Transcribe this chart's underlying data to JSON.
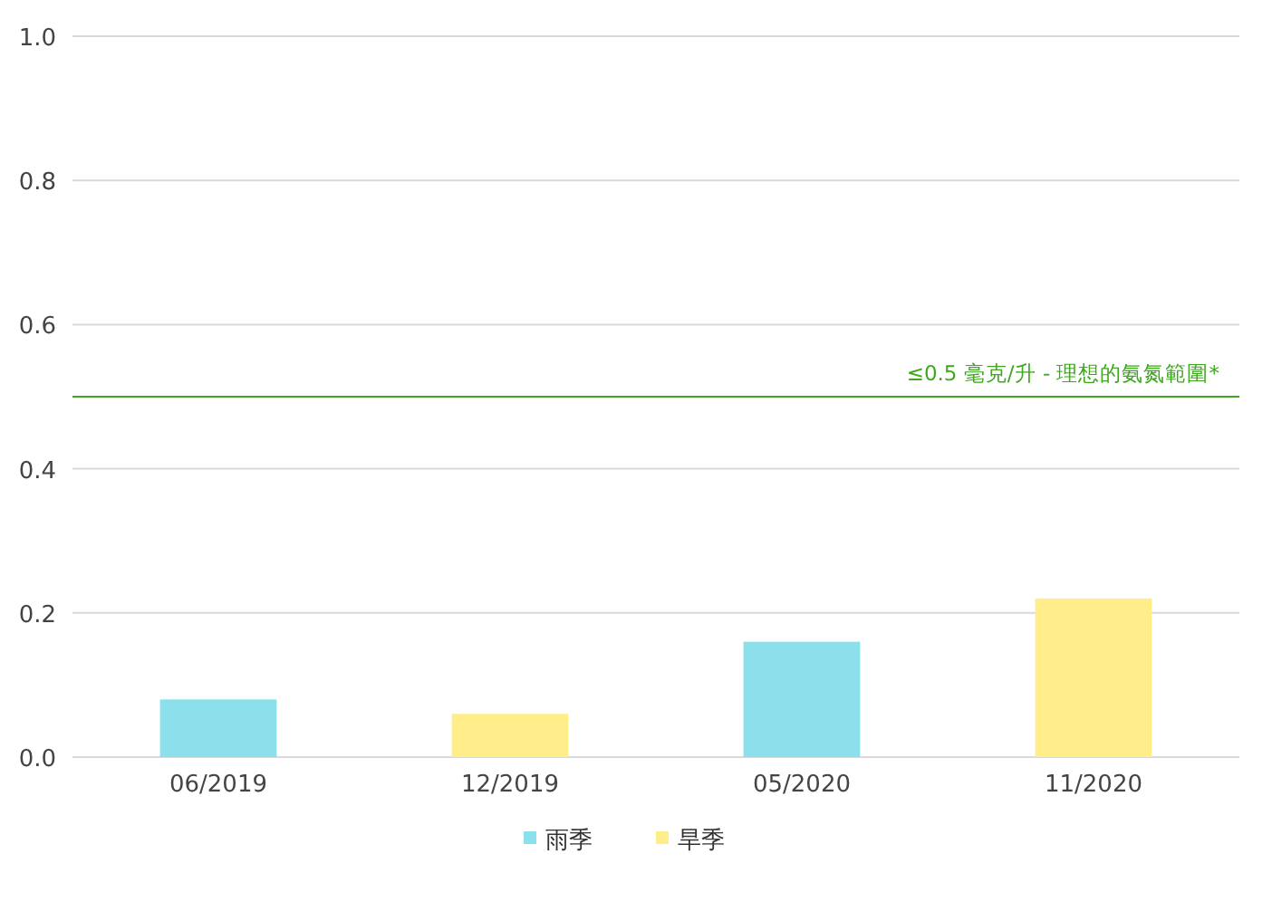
{
  "chart_data": {
    "type": "bar",
    "categories": [
      "06/2019",
      "12/2019",
      "05/2020",
      "11/2020"
    ],
    "series": [
      {
        "name": "雨季",
        "color": "#8be0ec",
        "values": [
          0.08,
          null,
          0.16,
          null
        ]
      },
      {
        "name": "旱季",
        "color": "#ffed8a",
        "values": [
          null,
          0.06,
          null,
          0.22
        ]
      }
    ],
    "ylim": [
      0,
      1
    ],
    "yticks": [
      {
        "value": 0,
        "label": "0.0"
      },
      {
        "value": 0.2,
        "label": "0.2"
      },
      {
        "value": 0.4,
        "label": "0.4"
      },
      {
        "value": 0.6,
        "label": "0.6"
      },
      {
        "value": 0.8,
        "label": "0.8"
      },
      {
        "value": 1,
        "label": "1.0"
      }
    ],
    "grid": "y",
    "legend": "bottom",
    "ref_lines": [
      {
        "axis": "y",
        "value": 0.5,
        "label": "≤0.5 毫克/升 - 理想的氨氮範圍*",
        "color": "#3fa81e"
      }
    ]
  }
}
